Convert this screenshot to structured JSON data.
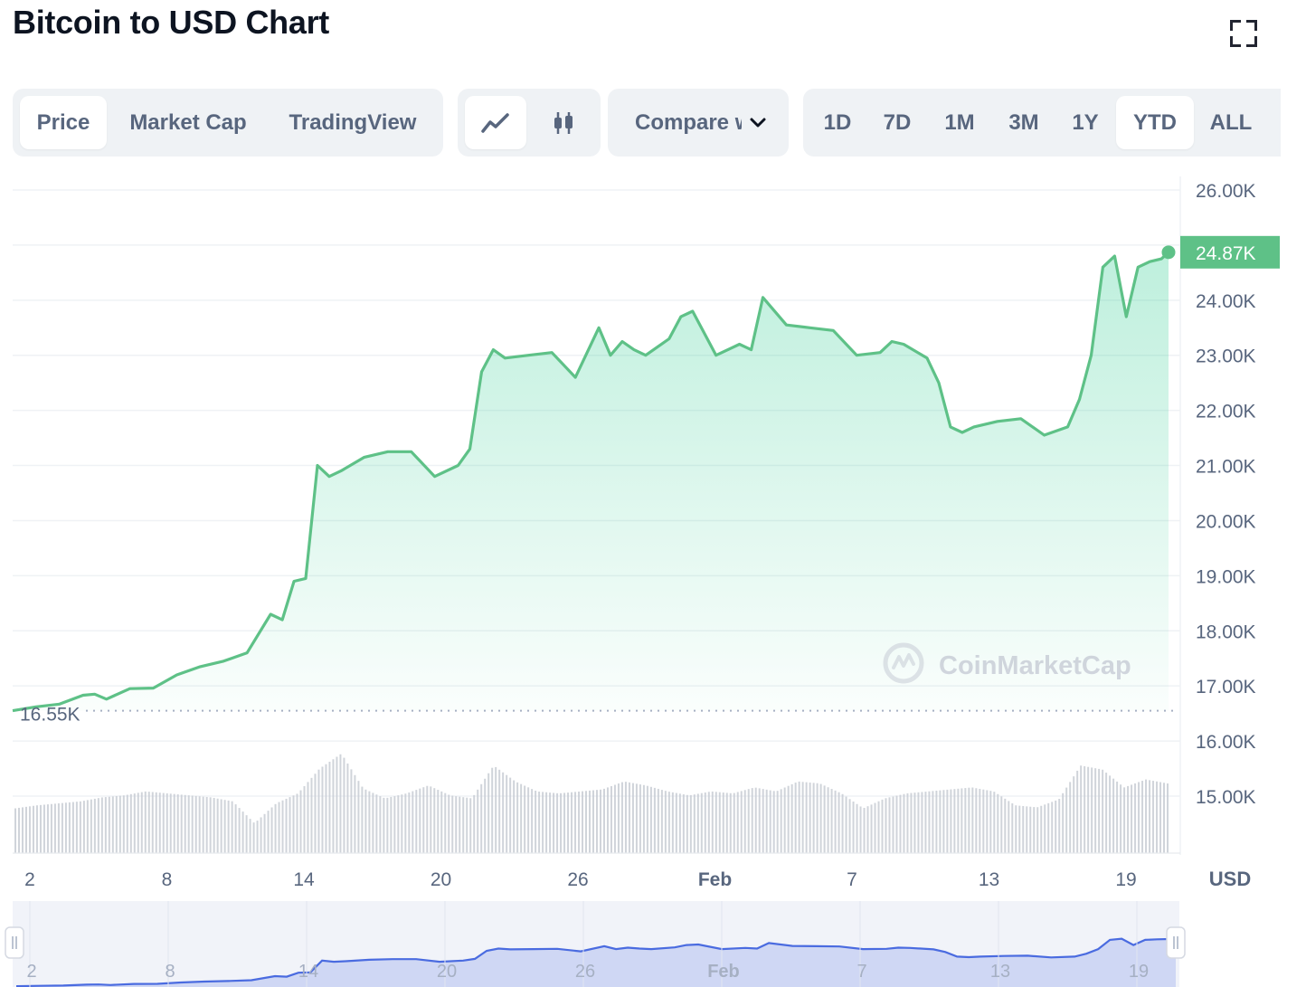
{
  "header": {
    "title": "Bitcoin to USD Chart",
    "fullscreen_icon": "fullscreen-icon"
  },
  "tabs": [
    {
      "label": "Price",
      "active": true
    },
    {
      "label": "Market Cap",
      "active": false
    },
    {
      "label": "TradingView",
      "active": false
    }
  ],
  "chart_type_buttons": [
    {
      "icon": "line-chart-icon",
      "active": true
    },
    {
      "icon": "candlestick-icon",
      "active": false
    }
  ],
  "compare": {
    "label": "Compare with",
    "icon": "chevron-down-icon"
  },
  "ranges": [
    {
      "label": "1D",
      "active": false
    },
    {
      "label": "7D",
      "active": false
    },
    {
      "label": "1M",
      "active": false
    },
    {
      "label": "3M",
      "active": false
    },
    {
      "label": "1Y",
      "active": false
    },
    {
      "label": "YTD",
      "active": true
    },
    {
      "label": "ALL",
      "active": false
    }
  ],
  "watermark": "CoinMarketCap",
  "chart_data": {
    "type": "area",
    "currency_label": "USD",
    "ylim": [
      14000,
      26000
    ],
    "yticks": [
      "26.00K",
      "24.00K",
      "23.00K",
      "22.00K",
      "21.00K",
      "20.00K",
      "19.00K",
      "18.00K",
      "17.00K",
      "16.00K",
      "15.00K"
    ],
    "current_price_label": "24.87K",
    "current_price": 24870,
    "start_price_label": "16.55K",
    "start_price": 16550,
    "xticks": [
      "2",
      "8",
      "14",
      "20",
      "26",
      "Feb",
      "7",
      "13",
      "19"
    ],
    "xtick_days": [
      1,
      7,
      13,
      19,
      25,
      31,
      37,
      43,
      49
    ],
    "navigator_xticks": [
      "2",
      "8",
      "14",
      "20",
      "26",
      "Feb",
      "7",
      "13",
      "19"
    ],
    "series": [
      {
        "x": [
          0,
          1,
          2,
          3,
          3.5,
          4,
          5,
          6,
          7,
          8,
          9,
          10,
          11,
          11.5,
          12,
          12.5,
          13,
          13.5,
          14,
          15,
          16,
          17,
          18,
          19,
          19.5,
          20,
          20.5,
          21,
          22,
          23,
          24,
          25,
          25.5,
          26,
          26.5,
          27,
          28,
          28.5,
          29,
          30,
          31,
          31.5,
          32,
          33,
          34,
          35,
          36,
          37,
          37.5,
          38,
          39,
          39.5,
          40,
          40.5,
          41,
          42,
          43,
          44,
          45,
          45.5,
          46,
          46.5,
          47,
          47.5,
          48,
          48.5,
          49,
          49.3
        ],
        "values": [
          16550,
          16620,
          16670,
          16830,
          16850,
          16760,
          16950,
          16960,
          17200,
          17350,
          17450,
          17600,
          18300,
          18200,
          18900,
          18950,
          21000,
          20800,
          20900,
          21150,
          21250,
          21250,
          20800,
          21000,
          21300,
          22700,
          23100,
          22950,
          23000,
          23050,
          22600,
          23500,
          23000,
          23250,
          23100,
          23000,
          23300,
          23700,
          23800,
          23000,
          23200,
          23100,
          24050,
          23550,
          23500,
          23450,
          23000,
          23050,
          23250,
          23200,
          22950,
          22500,
          21700,
          21600,
          21700,
          21800,
          21850,
          21550,
          21700,
          22200,
          23000,
          24600,
          24800,
          23700,
          24600,
          24700,
          24750,
          24870
        ]
      }
    ],
    "volume_relative": [
      0.45,
      0.48,
      0.5,
      0.52,
      0.56,
      0.58,
      0.62,
      0.6,
      0.58,
      0.56,
      0.52,
      0.3,
      0.5,
      0.6,
      0.85,
      1.0,
      0.65,
      0.55,
      0.6,
      0.68,
      0.58,
      0.55,
      0.88,
      0.72,
      0.62,
      0.6,
      0.62,
      0.64,
      0.72,
      0.68,
      0.62,
      0.58,
      0.62,
      0.6,
      0.66,
      0.62,
      0.72,
      0.7,
      0.6,
      0.45,
      0.55,
      0.6,
      0.62,
      0.64,
      0.66,
      0.62,
      0.48,
      0.46,
      0.54,
      0.88,
      0.84,
      0.66,
      0.74,
      0.7
    ]
  }
}
